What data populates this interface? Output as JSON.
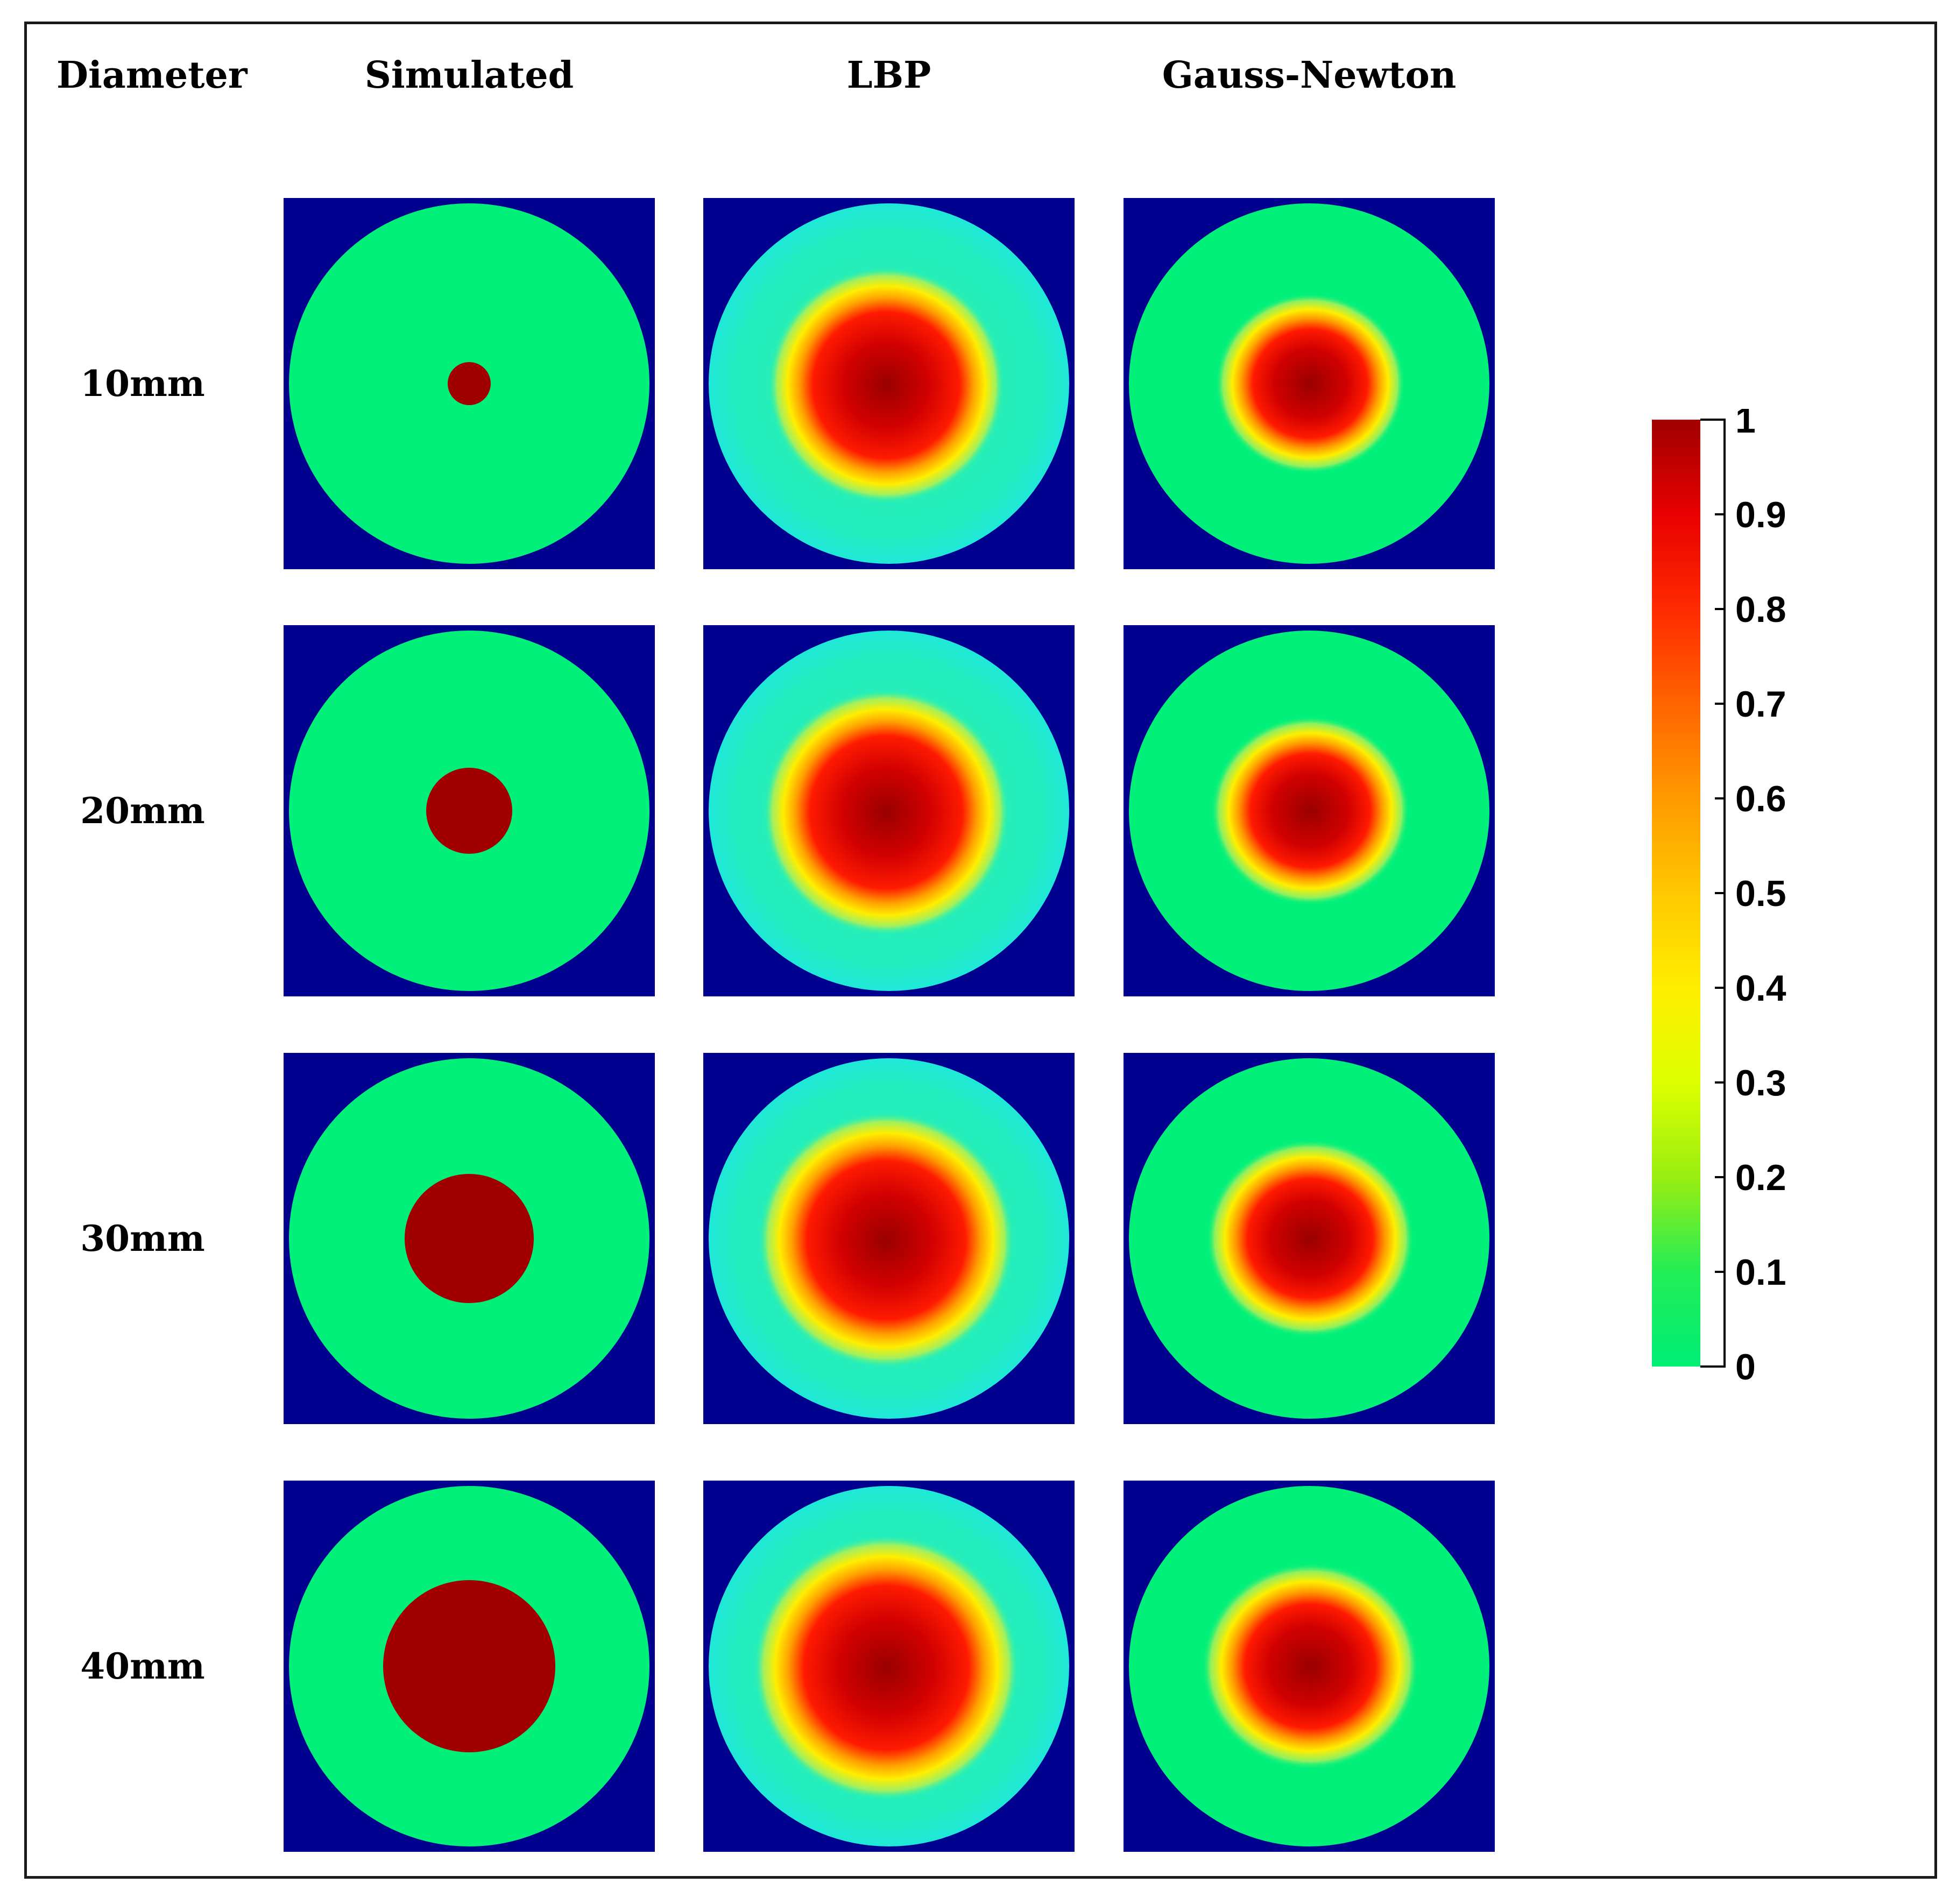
{
  "headers": {
    "diameter": "Diameter",
    "simulated": "Simulated",
    "lbp": "LBP",
    "gauss_newton": "Gauss-Newton"
  },
  "rows": [
    {
      "label": "10mm",
      "diameter_mm": 10
    },
    {
      "label": "20mm",
      "diameter_mm": 20
    },
    {
      "label": "30mm",
      "diameter_mm": 30
    },
    {
      "label": "40mm",
      "diameter_mm": 40
    }
  ],
  "colorbar": {
    "ticks": [
      "0",
      "0.1",
      "0.2",
      "0.3",
      "0.4",
      "0.5",
      "0.6",
      "0.7",
      "0.8",
      "0.9",
      "1"
    ],
    "range": [
      0,
      1
    ],
    "colormap": [
      "#00ee77",
      "#22ee55",
      "#99ee11",
      "#ddff00",
      "#ffee00",
      "#ffc800",
      "#ff9a00",
      "#ff6400",
      "#ff2a00",
      "#e80000",
      "#a00000"
    ]
  },
  "colors": {
    "background": "#00008f",
    "domain": "#00f07a",
    "inclusion": "#a00000",
    "lbp_domain": "#20f0b0",
    "frame": "#1a1a1a"
  }
}
